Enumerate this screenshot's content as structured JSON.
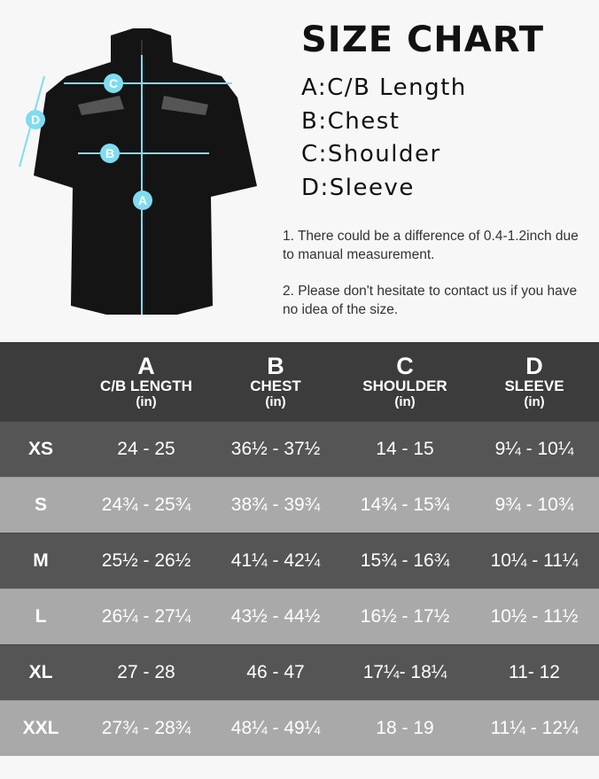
{
  "title": "SIZE CHART",
  "legend": [
    "A:C/B Length",
    "B:Chest",
    "C:Shoulder",
    "D:Sleeve"
  ],
  "notes": [
    "1. There could be a difference of 0.4-1.2inch due to manual measurement.",
    "2. Please don't hesitate to contact us if you have no idea of the size."
  ],
  "diagram_labels": {
    "a": "A",
    "b": "B",
    "c": "C",
    "d": "D"
  },
  "colors": {
    "accent": "#7fdcf0",
    "header_bg": "#3c3c3c",
    "row_dark": "#555555",
    "row_light": "#a9a9a9"
  },
  "table": {
    "headers": [
      {
        "letter": "A",
        "label": "C/B LENGTH",
        "unit": "(in)"
      },
      {
        "letter": "B",
        "label": "CHEST",
        "unit": "(in)"
      },
      {
        "letter": "C",
        "label": "SHOULDER",
        "unit": "(in)"
      },
      {
        "letter": "D",
        "label": "SLEEVE",
        "unit": "(in)"
      }
    ],
    "rows": [
      {
        "size": "XS",
        "values": [
          "24 - 25",
          "36½ - 37½",
          "14 - 15",
          "9¼ - 10¼"
        ]
      },
      {
        "size": "S",
        "values": [
          "24¾ - 25¾",
          "38¾ - 39¾",
          "14¾ - 15¾",
          "9¾ - 10¾"
        ]
      },
      {
        "size": "M",
        "values": [
          "25½ - 26½",
          "41¼ - 42¼",
          "15¾ - 16¾",
          "10¼ - 11¼"
        ]
      },
      {
        "size": "L",
        "values": [
          "26¼ - 27¼",
          "43½ - 44½",
          "16½ - 17½",
          "10½ - 11½"
        ]
      },
      {
        "size": "XL",
        "values": [
          "27 - 28",
          "46 - 47",
          "17¼- 18¼",
          "11- 12"
        ]
      },
      {
        "size": "XXL",
        "values": [
          "27¾ - 28¾",
          "48¼ - 49¼",
          "18 - 19",
          "11¼ - 12¼"
        ]
      }
    ]
  }
}
